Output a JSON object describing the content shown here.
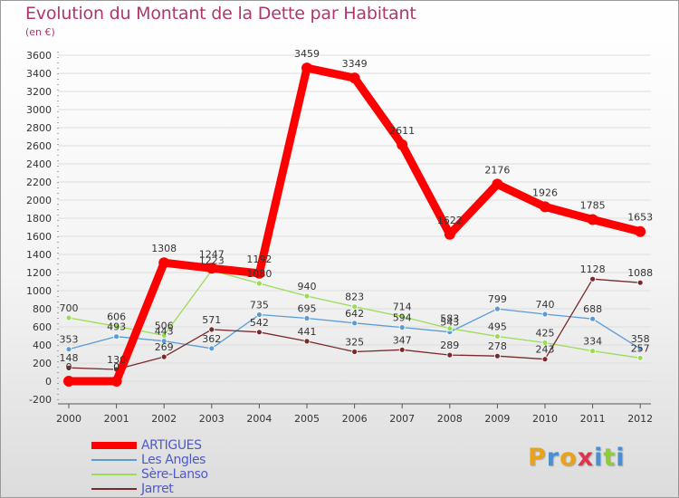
{
  "header": {
    "title": "Evolution du Montant de la Dette par Habitant",
    "subtitle": "(en €)"
  },
  "logo": {
    "letters": [
      "P",
      "r",
      "o",
      "x",
      "i",
      "t",
      "i"
    ]
  },
  "colors": {
    "title": "#b0356f",
    "axis_text": "#333333",
    "grid": "#dddddd",
    "legend_text": "#4e59c8"
  },
  "chart_data": {
    "type": "line",
    "title": "Evolution du Montant de la Dette par Habitant",
    "ylabel": "(en €)",
    "xlabel": "",
    "x": [
      "2000",
      "2001",
      "2002",
      "2003",
      "2004",
      "2005",
      "2006",
      "2007",
      "2008",
      "2009",
      "2010",
      "2011",
      "2012"
    ],
    "ylim": [
      -200,
      3600
    ],
    "yticks": [
      -200,
      0,
      200,
      400,
      600,
      800,
      1000,
      1200,
      1400,
      1600,
      1800,
      2000,
      2200,
      2400,
      2600,
      2800,
      3000,
      3200,
      3400,
      3600
    ],
    "grid": true,
    "legend": "bottom-left",
    "series": [
      {
        "name": "ARTIGUES",
        "color": "#ff0000",
        "values": [
          0,
          0,
          1308,
          1247,
          1192,
          3459,
          3349,
          2611,
          1622,
          2176,
          1926,
          1785,
          1653
        ],
        "labels": [
          "0",
          "0",
          "1308",
          "1247",
          "1192",
          "3459",
          "3349",
          "2611",
          "1622",
          "2176",
          "1926",
          "1785",
          "1653"
        ]
      },
      {
        "name": "Les Angles",
        "color": "#5b9bd5",
        "values": [
          353,
          493,
          443,
          362,
          735,
          695,
          642,
          594,
          543,
          799,
          740,
          688,
          358
        ],
        "labels": [
          "353",
          "493",
          "443",
          "362",
          "735",
          "695",
          "642",
          "594",
          "543",
          "799",
          "740",
          "688",
          "358"
        ]
      },
      {
        "name": "Sère-Lanso",
        "color": "#99dd55",
        "values": [
          700,
          606,
          506,
          1223,
          1080,
          940,
          823,
          714,
          583,
          495,
          425,
          334,
          257
        ],
        "labels": [
          "700",
          "606",
          "506",
          "1223",
          "1080",
          "940",
          "823",
          "714",
          "583",
          "495",
          "425",
          "334",
          "257"
        ]
      },
      {
        "name": "Jarret",
        "color": "#7a2a2a",
        "values": [
          148,
          130,
          269,
          571,
          542,
          441,
          325,
          347,
          289,
          278,
          243,
          1128,
          1088
        ],
        "labels": [
          "148",
          "130",
          "269",
          "571",
          "542",
          "441",
          "325",
          "347",
          "289",
          "278",
          "243",
          "1128",
          "1088"
        ]
      }
    ]
  }
}
